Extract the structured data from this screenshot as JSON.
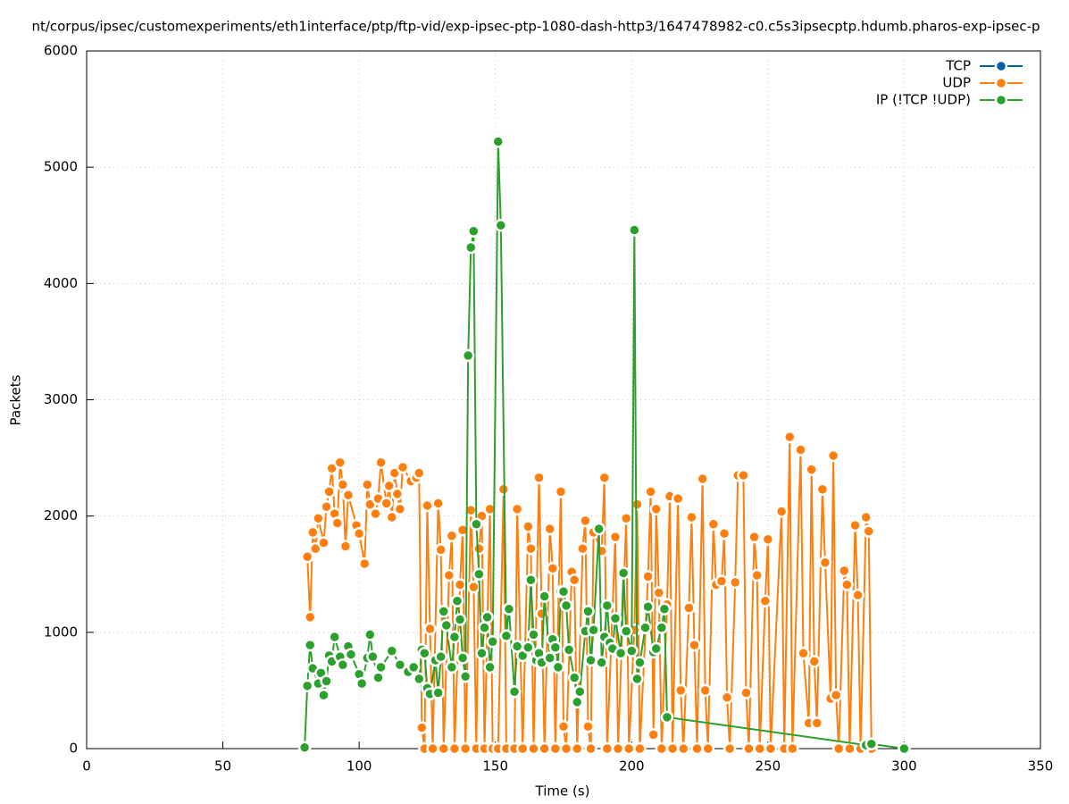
{
  "chart_data": {
    "type": "line",
    "title": "nt/corpus/ipsec/customexperiments/eth1interface/ptp/ftp-vid/exp-ipsec-ptp-1080-dash-http3/1647478982-c0.c5s3ipsecptp.hdumb.pharos-exp-ipsec-p",
    "x_label": "Time (s)",
    "y_label": "Packets",
    "xlim": [
      0,
      350
    ],
    "xticks": [
      0,
      50,
      100,
      150,
      200,
      250,
      300,
      350
    ],
    "ylim": [
      0,
      6000
    ],
    "yticks": [
      0,
      1000,
      2000,
      3000,
      4000,
      5000,
      6000
    ],
    "grid": true,
    "legend": "top-right",
    "series": [
      {
        "name": "TCP",
        "color": "#0060ad",
        "x": [],
        "values": []
      },
      {
        "name": "UDP",
        "color": "#ff7f0e",
        "x": [
          81,
          82,
          83,
          84,
          85,
          87,
          88,
          89,
          90,
          91,
          92,
          93,
          94,
          95,
          96,
          99,
          100,
          102,
          103,
          104,
          106,
          107,
          108,
          110,
          111,
          112,
          113,
          114,
          115,
          116,
          119,
          121,
          122,
          123,
          124,
          125,
          126,
          127,
          129,
          130,
          131,
          133,
          134,
          135,
          137,
          138,
          139,
          141,
          142,
          143,
          144,
          145,
          146,
          148,
          149,
          151,
          153,
          154,
          157,
          158,
          160,
          162,
          163,
          164,
          166,
          167,
          168,
          170,
          171,
          172,
          174,
          175,
          176,
          178,
          179,
          180,
          182,
          183,
          184,
          185,
          186,
          189,
          190,
          191,
          194,
          195,
          198,
          199,
          201,
          202,
          203,
          206,
          207,
          208,
          209,
          210,
          211,
          213,
          214,
          215,
          217,
          218,
          219,
          221,
          222,
          223,
          224,
          226,
          227,
          228,
          230,
          231,
          233,
          234,
          235,
          236,
          238,
          239,
          241,
          242,
          243,
          245,
          246,
          247,
          249,
          250,
          251,
          255,
          256,
          258,
          259,
          262,
          263,
          265,
          266,
          267,
          268,
          270,
          271,
          273,
          274,
          275,
          276,
          278,
          279,
          280,
          282,
          283,
          284,
          286,
          287,
          288
        ],
        "values": [
          1650,
          1130,
          1860,
          1720,
          1980,
          1770,
          2080,
          2210,
          2410,
          2020,
          1940,
          2460,
          2270,
          1740,
          2180,
          1920,
          1850,
          1590,
          2270,
          2100,
          2020,
          2150,
          2460,
          2110,
          2260,
          1990,
          2370,
          2190,
          2060,
          2420,
          2300,
          2330,
          2370,
          180,
          0,
          2090,
          1030,
          0,
          2110,
          1710,
          0,
          1490,
          1830,
          0,
          1410,
          1880,
          0,
          2050,
          1390,
          0,
          1720,
          2000,
          0,
          2060,
          0,
          0,
          2230,
          0,
          0,
          2060,
          0,
          1910,
          1720,
          0,
          2330,
          1160,
          0,
          1890,
          1550,
          0,
          2210,
          190,
          0,
          1520,
          1450,
          0,
          1720,
          1960,
          190,
          0,
          1860,
          1700,
          2330,
          0,
          1820,
          0,
          1980,
          0,
          1020,
          2100,
          0,
          1480,
          2210,
          120,
          2060,
          1340,
          0,
          1240,
          2170,
          0,
          2150,
          500,
          0,
          1210,
          1990,
          890,
          0,
          2320,
          500,
          0,
          1930,
          1410,
          1440,
          1850,
          440,
          0,
          1430,
          2350,
          2350,
          480,
          0,
          1820,
          1490,
          0,
          1270,
          1800,
          0,
          2040,
          0,
          2680,
          0,
          2570,
          820,
          220,
          2400,
          750,
          220,
          2230,
          1600,
          430,
          2520,
          460,
          0,
          1530,
          1410,
          0,
          1920,
          1320,
          0,
          1990,
          1870,
          0
        ]
      },
      {
        "name": "IP (!TCP  !UDP)",
        "color": "#2ca02c",
        "x": [
          80,
          81,
          82,
          83,
          85,
          86,
          87,
          88,
          89,
          90,
          91,
          93,
          94,
          96,
          97,
          100,
          101,
          103,
          104,
          105,
          107,
          108,
          112,
          115,
          118,
          120,
          122,
          123,
          124,
          125,
          126,
          128,
          129,
          130,
          131,
          132,
          134,
          135,
          136,
          137,
          138,
          139,
          140,
          141,
          142,
          143,
          144,
          145,
          146,
          147,
          148,
          149,
          151,
          152,
          154,
          155,
          157,
          158,
          160,
          162,
          163,
          164,
          165,
          166,
          167,
          168,
          170,
          171,
          172,
          173,
          174,
          175,
          176,
          177,
          179,
          180,
          181,
          183,
          184,
          185,
          186,
          188,
          189,
          190,
          191,
          192,
          193,
          194,
          196,
          197,
          198,
          200,
          201,
          202,
          203,
          205,
          206,
          208,
          209,
          211,
          212,
          213,
          286,
          288,
          300
        ],
        "values": [
          10,
          540,
          890,
          690,
          560,
          650,
          460,
          580,
          800,
          750,
          960,
          790,
          720,
          880,
          810,
          640,
          560,
          780,
          980,
          790,
          610,
          700,
          840,
          720,
          660,
          700,
          600,
          850,
          820,
          520,
          470,
          760,
          480,
          790,
          1180,
          1060,
          700,
          960,
          1270,
          1110,
          780,
          620,
          3380,
          4310,
          4450,
          1930,
          1500,
          820,
          1040,
          1130,
          700,
          920,
          5220,
          4500,
          970,
          1200,
          490,
          880,
          800,
          870,
          1450,
          980,
          760,
          820,
          740,
          1310,
          780,
          940,
          870,
          700,
          1350,
          1350,
          1230,
          850,
          610,
          400,
          490,
          1010,
          1180,
          760,
          1020,
          1890,
          740,
          960,
          1230,
          910,
          860,
          1120,
          820,
          1510,
          1010,
          840,
          4460,
          600,
          740,
          1040,
          1220,
          830,
          860,
          1040,
          1200,
          270,
          30,
          40,
          0
        ]
      }
    ]
  }
}
